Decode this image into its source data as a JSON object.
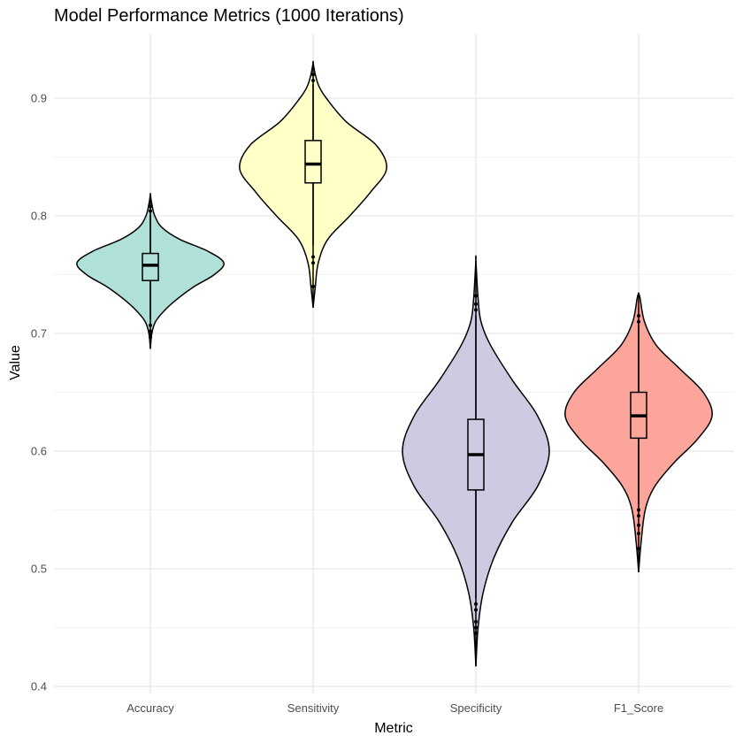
{
  "chart_data": {
    "type": "violin",
    "title": "Model Performance Metrics (1000 Iterations)",
    "xlabel": "Metric",
    "ylabel": "Value",
    "ylim": [
      0.4,
      0.95
    ],
    "yticks": [
      "0.4",
      "0.5",
      "0.6",
      "0.7",
      "0.8",
      "0.9"
    ],
    "grid": true,
    "legend": "none",
    "categories": [
      "Accuracy",
      "Sensitivity",
      "Specificity",
      "F1_Score"
    ],
    "series": [
      {
        "category": "Accuracy",
        "color": "#b0e1d8",
        "box": {
          "q1": 0.745,
          "median": 0.758,
          "q3": 0.768,
          "whisker_low": 0.712,
          "whisker_high": 0.801
        },
        "range": [
          0.687,
          0.818
        ],
        "outliers": [
          0.707,
          0.702,
          0.699,
          0.697,
          0.804,
          0.808
        ],
        "density": [
          [
            0.687,
            0.0
          ],
          [
            0.7,
            0.02
          ],
          [
            0.71,
            0.07
          ],
          [
            0.72,
            0.2
          ],
          [
            0.73,
            0.38
          ],
          [
            0.74,
            0.6
          ],
          [
            0.75,
            0.87
          ],
          [
            0.76,
            1.0
          ],
          [
            0.77,
            0.78
          ],
          [
            0.78,
            0.4
          ],
          [
            0.79,
            0.16
          ],
          [
            0.8,
            0.06
          ],
          [
            0.81,
            0.02
          ],
          [
            0.818,
            0.0
          ]
        ]
      },
      {
        "category": "Sensitivity",
        "color": "#ffffc8",
        "box": {
          "q1": 0.828,
          "median": 0.844,
          "q3": 0.864,
          "whisker_low": 0.775,
          "whisker_high": 0.912
        },
        "range": [
          0.722,
          0.93
        ],
        "outliers": [
          0.74,
          0.76,
          0.765,
          0.915,
          0.92
        ],
        "density": [
          [
            0.722,
            0.0
          ],
          [
            0.74,
            0.03
          ],
          [
            0.76,
            0.07
          ],
          [
            0.78,
            0.2
          ],
          [
            0.8,
            0.5
          ],
          [
            0.82,
            0.78
          ],
          [
            0.84,
            1.0
          ],
          [
            0.86,
            0.86
          ],
          [
            0.88,
            0.45
          ],
          [
            0.9,
            0.18
          ],
          [
            0.91,
            0.08
          ],
          [
            0.92,
            0.03
          ],
          [
            0.93,
            0.0
          ]
        ]
      },
      {
        "category": "Specificity",
        "color": "#cccbe2",
        "box": {
          "q1": 0.567,
          "median": 0.597,
          "q3": 0.627,
          "whisker_low": 0.475,
          "whisker_high": 0.715
        },
        "range": [
          0.417,
          0.762
        ],
        "outliers": [
          0.47,
          0.465,
          0.455,
          0.45,
          0.445,
          0.72,
          0.725,
          0.732
        ],
        "density": [
          [
            0.417,
            0.0
          ],
          [
            0.45,
            0.03
          ],
          [
            0.48,
            0.1
          ],
          [
            0.51,
            0.25
          ],
          [
            0.54,
            0.5
          ],
          [
            0.57,
            0.84
          ],
          [
            0.6,
            1.0
          ],
          [
            0.63,
            0.84
          ],
          [
            0.66,
            0.5
          ],
          [
            0.69,
            0.2
          ],
          [
            0.71,
            0.07
          ],
          [
            0.73,
            0.03
          ],
          [
            0.762,
            0.0
          ]
        ]
      },
      {
        "category": "F1_Score",
        "color": "#fca59a",
        "box": {
          "q1": 0.611,
          "median": 0.63,
          "q3": 0.65,
          "whisker_low": 0.555,
          "whisker_high": 0.707
        },
        "range": [
          0.497,
          0.734
        ],
        "outliers": [
          0.517,
          0.53,
          0.537,
          0.545,
          0.55,
          0.71,
          0.715
        ],
        "density": [
          [
            0.497,
            0.0
          ],
          [
            0.52,
            0.03
          ],
          [
            0.55,
            0.09
          ],
          [
            0.57,
            0.22
          ],
          [
            0.59,
            0.48
          ],
          [
            0.61,
            0.8
          ],
          [
            0.63,
            1.0
          ],
          [
            0.65,
            0.88
          ],
          [
            0.67,
            0.56
          ],
          [
            0.69,
            0.24
          ],
          [
            0.71,
            0.08
          ],
          [
            0.73,
            0.02
          ],
          [
            0.734,
            0.0
          ]
        ]
      }
    ]
  }
}
